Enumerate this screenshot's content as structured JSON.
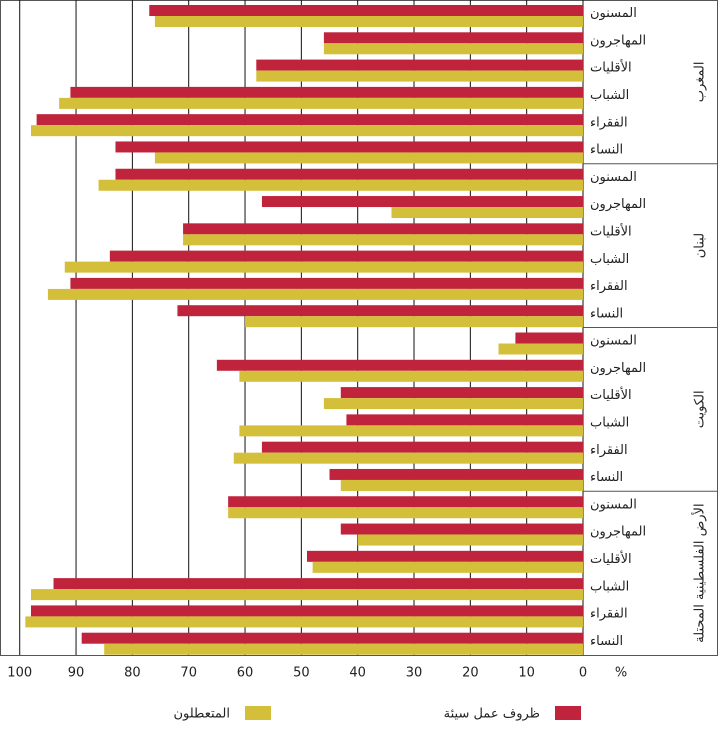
{
  "chart_data": {
    "type": "barh",
    "groups": [
      "المغرب",
      "لبنان",
      "الكويت",
      "الأرض الفلسطينية المحتلة"
    ],
    "categories": [
      "المسنون",
      "المهاجرون",
      "الأقليات",
      "الشباب",
      "الفقراء",
      "النساء",
      "المسنون",
      "المهاجرون",
      "الأقليات",
      "الشباب",
      "الفقراء",
      "النساء",
      "المسنون",
      "المهاجرون",
      "الأقليات",
      "الشباب",
      "الفقراء",
      "النساء",
      "المسنون",
      "المهاجرون",
      "الأقليات",
      "الشباب",
      "الفقراء",
      "النساء"
    ],
    "series": [
      {
        "name": "ظروف عمل سيئة",
        "color": "#c0243c",
        "values": [
          77,
          46,
          58,
          91,
          97,
          83,
          83,
          57,
          71,
          84,
          91,
          72,
          12,
          65,
          43,
          42,
          57,
          45,
          63,
          43,
          49,
          94,
          98,
          89
        ]
      },
      {
        "name": "المتعطلون",
        "color": "#d4bf3a",
        "values": [
          76,
          46,
          58,
          93,
          98,
          76,
          86,
          34,
          71,
          92,
          95,
          60,
          15,
          61,
          46,
          61,
          62,
          43,
          63,
          40,
          48,
          98,
          99,
          85
        ]
      }
    ],
    "xlabel": "%",
    "xlim": [
      103.5,
      0
    ],
    "xticks": [
      100,
      90,
      80,
      70,
      60,
      50,
      40,
      30,
      20,
      10,
      0
    ],
    "grid": true
  }
}
